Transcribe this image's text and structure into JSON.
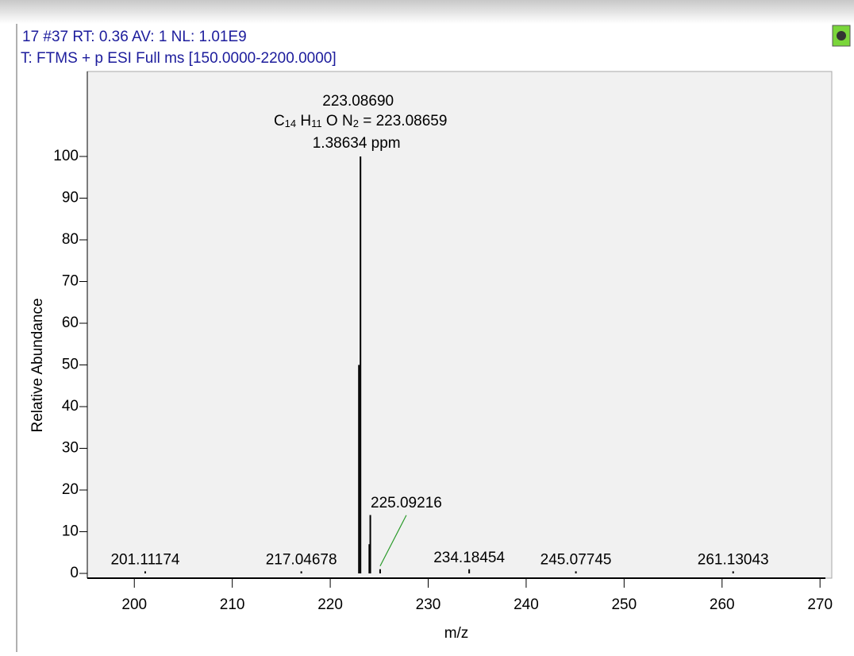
{
  "chart_data": {
    "type": "spectrum",
    "header": [
      "17 #37  RT: 0.36  AV: 1  NL: 1.01E9",
      "T: FTMS + p ESI Full ms [150.0000-2200.0000]"
    ],
    "x_label": "m/z",
    "y_label": "Relative Abundance",
    "x": [
      201.11174,
      217.04678,
      222.93,
      223.0869,
      223.99,
      224.09,
      225.09216,
      234.18454,
      245.07745,
      261.13043
    ],
    "values": [
      0.5,
      0.5,
      50,
      100,
      7,
      14,
      1,
      1,
      0.5,
      0.5
    ],
    "peak_labels": [
      "201.11174",
      "217.04678",
      null,
      "223.08690",
      null,
      null,
      "225.09216",
      "234.18454",
      "245.07745",
      "261.13043"
    ],
    "formula_parts": [
      "C",
      "14",
      " H",
      "11",
      " O N",
      "2",
      " = 223.08659"
    ],
    "ppm_label": "1.38634 ppm",
    "color": "#000000",
    "leader_color": "#2a9a2a",
    "xlim": [
      195.2,
      271.2
    ],
    "xticks": [
      200,
      210,
      220,
      230,
      240,
      250,
      260,
      270
    ],
    "ylim": [
      -1,
      120
    ],
    "yticks": [
      0,
      10,
      20,
      30,
      40,
      50,
      60,
      70,
      80,
      90,
      100
    ]
  }
}
